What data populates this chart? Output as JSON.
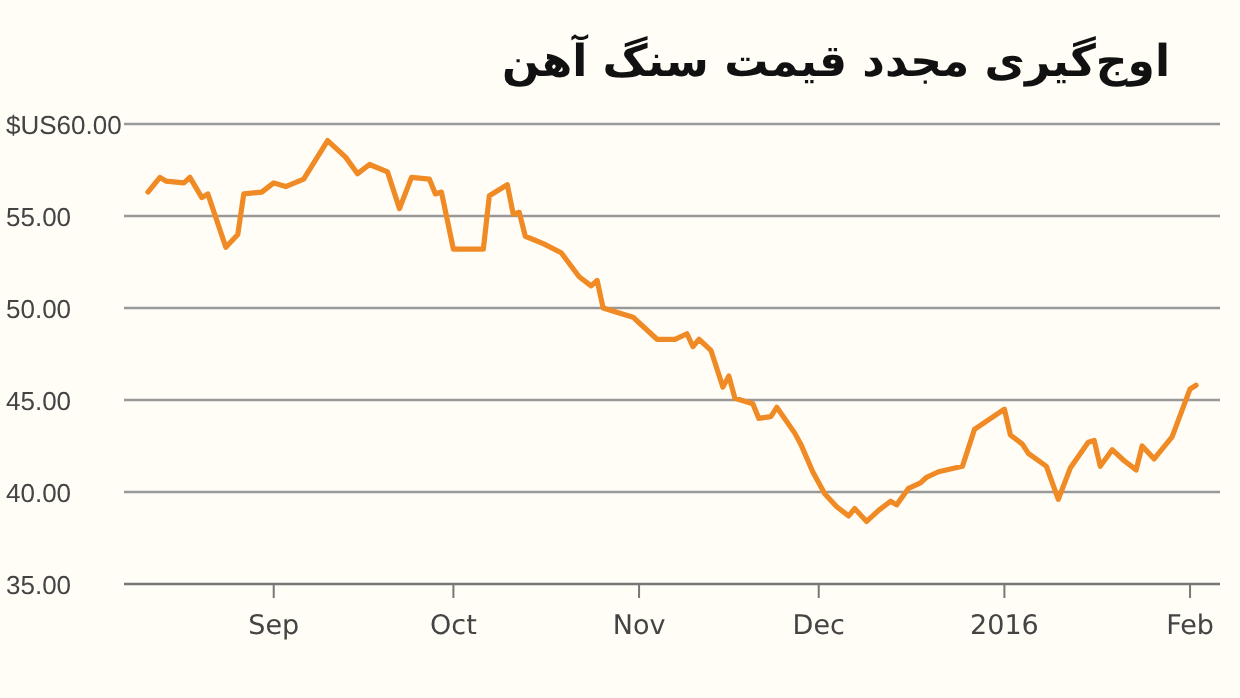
{
  "chart_data": {
    "type": "line",
    "title": "اوج‌گیری مجدد قیمت سنگ آهن",
    "x": [
      "2015-08-11",
      "2015-08-13",
      "2015-08-14",
      "2015-08-17",
      "2015-08-18",
      "2015-08-20",
      "2015-08-21",
      "2015-08-24",
      "2015-08-26",
      "2015-08-27",
      "2015-08-30",
      "2015-09-01",
      "2015-09-03",
      "2015-09-06",
      "2015-09-10",
      "2015-09-13",
      "2015-09-15",
      "2015-09-17",
      "2015-09-20",
      "2015-09-22",
      "2015-09-24",
      "2015-09-27",
      "2015-09-28",
      "2015-09-29",
      "2015-10-01",
      "2015-10-06",
      "2015-10-07",
      "2015-10-10",
      "2015-10-11",
      "2015-10-12",
      "2015-10-13",
      "2015-10-16",
      "2015-10-19",
      "2015-10-22",
      "2015-10-24",
      "2015-10-25",
      "2015-10-26",
      "2015-10-28",
      "2015-10-31",
      "2015-11-01",
      "2015-11-04",
      "2015-11-07",
      "2015-11-09",
      "2015-11-10",
      "2015-11-11",
      "2015-11-13",
      "2015-11-15",
      "2015-11-16",
      "2015-11-17",
      "2015-11-20",
      "2015-11-21",
      "2015-11-23",
      "2015-11-24",
      "2015-11-27",
      "2015-11-28",
      "2015-11-30",
      "2015-12-02",
      "2015-12-04",
      "2015-12-06",
      "2015-12-07",
      "2015-12-09",
      "2015-12-11",
      "2015-12-13",
      "2015-12-14",
      "2015-12-16",
      "2015-12-18",
      "2015-12-19",
      "2015-12-21",
      "2015-12-25",
      "2015-12-27",
      "2016-01-01",
      "2016-01-02",
      "2016-01-04",
      "2016-01-05",
      "2016-01-08",
      "2016-01-10",
      "2016-01-12",
      "2016-01-15",
      "2016-01-16",
      "2016-01-17",
      "2016-01-19",
      "2016-01-21",
      "2016-01-23",
      "2016-01-24",
      "2016-01-26",
      "2016-01-29",
      "2016-02-01",
      "2016-02-02"
    ],
    "series": [
      {
        "color": "#f08a24",
        "values": [
          56.3,
          57.1,
          56.9,
          56.8,
          57.1,
          56.0,
          56.2,
          53.3,
          54.0,
          56.2,
          56.3,
          56.8,
          56.6,
          57.0,
          59.1,
          58.2,
          57.3,
          57.8,
          57.4,
          55.4,
          57.1,
          57.0,
          56.2,
          56.3,
          53.2,
          53.2,
          56.1,
          56.7,
          55.1,
          55.2,
          53.9,
          53.5,
          53.0,
          51.7,
          51.2,
          51.5,
          50.0,
          49.8,
          49.5,
          49.2,
          48.3,
          48.3,
          48.6,
          47.9,
          48.3,
          47.7,
          45.7,
          46.3,
          45.1,
          44.8,
          44.0,
          44.1,
          44.6,
          43.2,
          42.6,
          41.1,
          39.9,
          39.2,
          38.7,
          39.1,
          38.4,
          39.0,
          39.5,
          39.3,
          40.2,
          40.5,
          40.8,
          41.1,
          41.4,
          43.4,
          44.5,
          43.1,
          42.6,
          42.1,
          41.4,
          39.6,
          41.3,
          42.7,
          42.8,
          41.4,
          42.3,
          41.7,
          41.2,
          42.5,
          41.8,
          43.0,
          45.6,
          45.8
        ]
      }
    ],
    "xlim": [
      "2015-08-07",
      "2016-02-06"
    ],
    "xticks": [
      {
        "value": "2015-09-01",
        "label": "Sep"
      },
      {
        "value": "2015-10-01",
        "label": "Oct"
      },
      {
        "value": "2015-11-01",
        "label": "Nov"
      },
      {
        "value": "2015-12-01",
        "label": "Dec"
      },
      {
        "value": "2016-01-01",
        "label": "2016"
      },
      {
        "value": "2016-02-01",
        "label": "Feb"
      }
    ],
    "ylim": [
      35,
      60
    ],
    "yticks": [
      {
        "value": 35,
        "label": "35.00"
      },
      {
        "value": 40,
        "label": "40.00"
      },
      {
        "value": 45,
        "label": "45.00"
      },
      {
        "value": 50,
        "label": "50.00"
      },
      {
        "value": 55,
        "label": "55.00"
      },
      {
        "value": 60,
        "label": "$US60.00"
      }
    ],
    "grid": "y"
  }
}
